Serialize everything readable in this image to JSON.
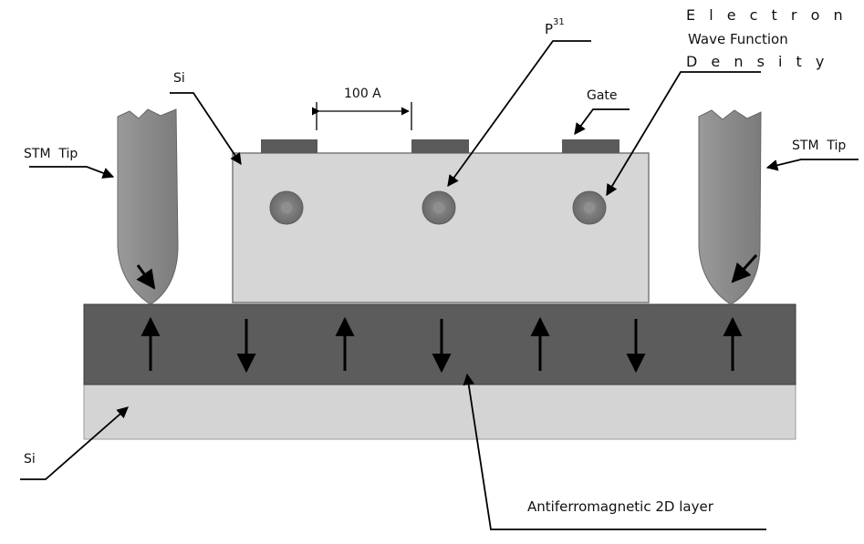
{
  "labels": {
    "si_top": "Si",
    "si_bottom": "Si",
    "stm_tip_left": "STM  Tip",
    "stm_tip_right": "STM  Tip",
    "gate": "Gate",
    "spacing": "100 A",
    "phosphorus_base": "P",
    "phosphorus_sup": "31",
    "electron_line1": "E l e c t r o n",
    "electron_line2": "Wave Function",
    "electron_line3": "D e n s i t y",
    "afm_layer": "Antiferromagnetic 2D layer"
  },
  "spins": [
    "up",
    "down",
    "up",
    "down",
    "up",
    "down",
    "up"
  ],
  "colors": {
    "si_block": "#d6d6d6",
    "si_substrate": "#d4d4d4",
    "afm_layer": "#5c5c5c",
    "gate": "#5a5a5a",
    "stm_tip": "#8c8c8c",
    "donor": "#7a7a7a",
    "arrow": "#000000"
  }
}
